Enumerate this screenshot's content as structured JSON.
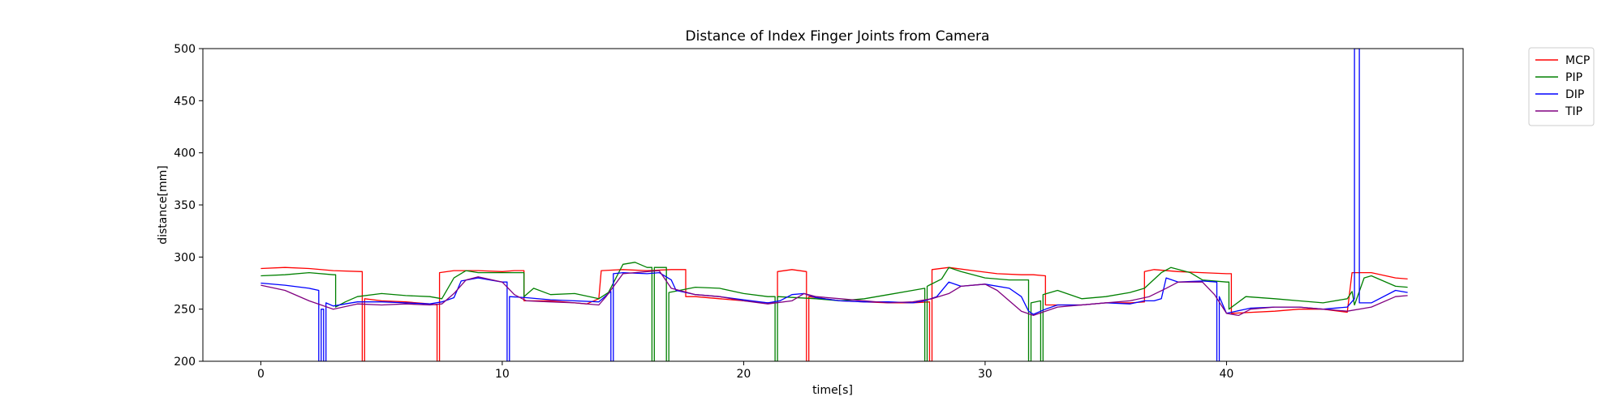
{
  "chart_data": {
    "type": "line",
    "title": "Distance of Index Finger Joints from Camera",
    "xlabel": "time[s]",
    "ylabel": "distance[mm]",
    "xlim": [
      -2.4,
      49.8
    ],
    "ylim": [
      200,
      500
    ],
    "xticks": [
      0,
      10,
      20,
      30,
      40
    ],
    "yticks": [
      200,
      250,
      300,
      350,
      400,
      450,
      500
    ],
    "grid": false,
    "legend": "outside-top-right",
    "series": [
      {
        "name": "MCP",
        "color": "#ff0000",
        "points": [
          [
            0,
            289
          ],
          [
            1,
            290
          ],
          [
            2,
            289
          ],
          [
            3,
            287
          ],
          [
            4.2,
            286
          ],
          [
            4.2,
            200
          ],
          [
            4.3,
            200
          ],
          [
            4.3,
            260
          ],
          [
            5,
            258
          ],
          [
            6,
            257
          ],
          [
            7,
            255
          ],
          [
            7.3,
            254
          ],
          [
            7.3,
            200
          ],
          [
            7.4,
            200
          ],
          [
            7.4,
            285
          ],
          [
            8,
            287
          ],
          [
            9,
            287
          ],
          [
            10,
            286
          ],
          [
            10.5,
            287
          ],
          [
            10.9,
            287
          ],
          [
            10.9,
            258
          ],
          [
            12,
            258
          ],
          [
            13,
            256
          ],
          [
            13.5,
            255
          ],
          [
            14,
            260
          ],
          [
            14.1,
            287
          ],
          [
            15,
            288
          ],
          [
            16,
            287
          ],
          [
            17,
            288
          ],
          [
            17.6,
            288
          ],
          [
            17.6,
            262
          ],
          [
            18,
            262
          ],
          [
            19,
            260
          ],
          [
            20,
            258
          ],
          [
            21,
            256
          ],
          [
            21.4,
            256
          ],
          [
            21.4,
            286
          ],
          [
            22,
            288
          ],
          [
            22.6,
            286
          ],
          [
            22.6,
            200
          ],
          [
            22.7,
            200
          ],
          [
            22.7,
            262
          ],
          [
            24,
            258
          ],
          [
            25,
            257
          ],
          [
            26,
            256
          ],
          [
            27,
            256
          ],
          [
            27.7,
            257
          ],
          [
            27.7,
            200
          ],
          [
            27.8,
            200
          ],
          [
            27.8,
            288
          ],
          [
            28.5,
            290
          ],
          [
            29.5,
            287
          ],
          [
            30.5,
            284
          ],
          [
            31.5,
            283
          ],
          [
            32,
            283
          ],
          [
            32.5,
            282
          ],
          [
            32.5,
            254
          ],
          [
            34,
            254
          ],
          [
            35,
            256
          ],
          [
            36,
            256
          ],
          [
            36.6,
            257
          ],
          [
            36.6,
            286
          ],
          [
            37,
            288
          ],
          [
            38,
            286
          ],
          [
            39,
            285
          ],
          [
            40,
            284
          ],
          [
            40.2,
            284
          ],
          [
            40.2,
            246
          ],
          [
            42,
            248
          ],
          [
            43,
            250
          ],
          [
            44,
            250
          ],
          [
            45,
            247
          ],
          [
            45.2,
            285
          ],
          [
            46,
            285
          ],
          [
            47,
            280
          ],
          [
            47.5,
            279
          ]
        ]
      },
      {
        "name": "PIP",
        "color": "#008000",
        "points": [
          [
            0,
            282
          ],
          [
            1,
            283
          ],
          [
            2,
            285
          ],
          [
            3,
            283
          ],
          [
            3.1,
            283
          ],
          [
            3.1,
            252
          ],
          [
            3.5,
            257
          ],
          [
            4,
            262
          ],
          [
            5,
            265
          ],
          [
            6,
            263
          ],
          [
            7,
            262
          ],
          [
            7.5,
            260
          ],
          [
            8,
            280
          ],
          [
            8.5,
            287
          ],
          [
            9,
            285
          ],
          [
            10,
            285
          ],
          [
            10.6,
            285
          ],
          [
            10.9,
            285
          ],
          [
            10.9,
            262
          ],
          [
            11.3,
            270
          ],
          [
            12,
            264
          ],
          [
            13,
            265
          ],
          [
            14,
            260
          ],
          [
            14.4,
            266
          ],
          [
            15,
            293
          ],
          [
            15.5,
            295
          ],
          [
            16,
            290
          ],
          [
            16.2,
            290
          ],
          [
            16.2,
            200
          ],
          [
            16.3,
            200
          ],
          [
            16.3,
            290
          ],
          [
            16.8,
            290
          ],
          [
            16.8,
            200
          ],
          [
            16.9,
            200
          ],
          [
            16.9,
            266
          ],
          [
            18,
            271
          ],
          [
            19,
            270
          ],
          [
            20,
            265
          ],
          [
            21,
            262
          ],
          [
            21.3,
            262
          ],
          [
            21.3,
            200
          ],
          [
            21.4,
            200
          ],
          [
            21.4,
            262
          ],
          [
            23,
            260
          ],
          [
            24,
            258
          ],
          [
            25,
            260
          ],
          [
            26,
            264
          ],
          [
            27,
            268
          ],
          [
            27.5,
            270
          ],
          [
            27.5,
            200
          ],
          [
            27.6,
            200
          ],
          [
            27.6,
            272
          ],
          [
            28.2,
            279
          ],
          [
            28.5,
            290
          ],
          [
            29,
            286
          ],
          [
            30,
            280
          ],
          [
            31,
            278
          ],
          [
            31.8,
            278
          ],
          [
            31.8,
            200
          ],
          [
            31.9,
            200
          ],
          [
            31.9,
            256
          ],
          [
            32.3,
            258
          ],
          [
            32.3,
            200
          ],
          [
            32.4,
            200
          ],
          [
            32.4,
            264
          ],
          [
            33,
            268
          ],
          [
            34,
            260
          ],
          [
            35,
            262
          ],
          [
            36,
            266
          ],
          [
            36.6,
            270
          ],
          [
            37.3,
            285
          ],
          [
            37.7,
            290
          ],
          [
            38.5,
            285
          ],
          [
            39,
            278
          ],
          [
            40,
            276
          ],
          [
            40.1,
            276
          ],
          [
            40.1,
            250
          ],
          [
            40.8,
            262
          ],
          [
            42,
            260
          ],
          [
            43,
            258
          ],
          [
            44,
            256
          ],
          [
            45,
            260
          ],
          [
            45.2,
            267
          ],
          [
            45.3,
            254
          ],
          [
            45.7,
            280
          ],
          [
            46,
            282
          ],
          [
            47,
            272
          ],
          [
            47.5,
            271
          ]
        ]
      },
      {
        "name": "DIP",
        "color": "#0000ff",
        "points": [
          [
            0,
            275
          ],
          [
            1,
            273
          ],
          [
            2,
            270
          ],
          [
            2.4,
            268
          ],
          [
            2.4,
            200
          ],
          [
            2.5,
            200
          ],
          [
            2.5,
            250
          ],
          [
            2.6,
            250
          ],
          [
            2.6,
            200
          ],
          [
            2.7,
            200
          ],
          [
            2.7,
            256
          ],
          [
            3,
            253
          ],
          [
            3.5,
            255
          ],
          [
            4,
            257
          ],
          [
            5,
            257
          ],
          [
            6,
            256
          ],
          [
            7,
            255
          ],
          [
            7.5,
            257
          ],
          [
            8,
            261
          ],
          [
            8.3,
            277
          ],
          [
            9,
            280
          ],
          [
            10,
            276
          ],
          [
            10.2,
            276
          ],
          [
            10.2,
            200
          ],
          [
            10.3,
            200
          ],
          [
            10.3,
            262
          ],
          [
            11,
            261
          ],
          [
            12,
            259
          ],
          [
            13,
            258
          ],
          [
            14,
            257
          ],
          [
            14.5,
            267
          ],
          [
            14.5,
            200
          ],
          [
            14.6,
            200
          ],
          [
            14.6,
            284
          ],
          [
            15,
            285
          ],
          [
            16,
            284
          ],
          [
            16.5,
            285
          ],
          [
            17,
            278
          ],
          [
            17.2,
            268
          ],
          [
            18,
            264
          ],
          [
            19,
            262
          ],
          [
            20,
            259
          ],
          [
            21,
            256
          ],
          [
            21.5,
            258
          ],
          [
            22,
            264
          ],
          [
            22.5,
            265
          ],
          [
            23,
            261
          ],
          [
            24,
            258
          ],
          [
            25,
            257
          ],
          [
            26,
            257
          ],
          [
            27,
            256
          ],
          [
            27.5,
            258
          ],
          [
            28,
            262
          ],
          [
            28.5,
            276
          ],
          [
            29,
            272
          ],
          [
            30,
            274
          ],
          [
            31,
            270
          ],
          [
            31.5,
            262
          ],
          [
            31.8,
            248
          ],
          [
            32,
            245
          ],
          [
            32.5,
            250
          ],
          [
            33,
            254
          ],
          [
            34,
            254
          ],
          [
            35,
            256
          ],
          [
            36,
            255
          ],
          [
            36.6,
            258
          ],
          [
            37,
            258
          ],
          [
            37.3,
            260
          ],
          [
            37.5,
            280
          ],
          [
            38,
            276
          ],
          [
            39,
            277
          ],
          [
            39.6,
            276
          ],
          [
            39.6,
            200
          ],
          [
            39.7,
            200
          ],
          [
            39.7,
            262
          ],
          [
            40,
            246
          ],
          [
            41,
            251
          ],
          [
            42,
            252
          ],
          [
            43,
            252
          ],
          [
            44,
            250
          ],
          [
            45,
            252
          ],
          [
            45.3,
            260
          ],
          [
            45.3,
            500
          ],
          [
            45.5,
            500
          ],
          [
            45.5,
            256
          ],
          [
            46,
            256
          ],
          [
            47,
            268
          ],
          [
            47.5,
            266
          ]
        ]
      },
      {
        "name": "TIP",
        "color": "#800080",
        "points": [
          [
            0,
            273
          ],
          [
            1,
            268
          ],
          [
            2,
            258
          ],
          [
            3,
            250
          ],
          [
            4,
            255
          ],
          [
            5,
            254
          ],
          [
            6,
            255
          ],
          [
            7,
            254
          ],
          [
            7.5,
            255
          ],
          [
            8,
            265
          ],
          [
            8.5,
            278
          ],
          [
            9,
            281
          ],
          [
            10,
            276
          ],
          [
            10.5,
            264
          ],
          [
            11,
            258
          ],
          [
            12,
            257
          ],
          [
            13,
            256
          ],
          [
            14,
            254
          ],
          [
            14.3,
            262
          ],
          [
            15,
            284
          ],
          [
            16,
            286
          ],
          [
            16.5,
            287
          ],
          [
            17,
            270
          ],
          [
            18,
            264
          ],
          [
            19,
            262
          ],
          [
            20,
            258
          ],
          [
            21,
            255
          ],
          [
            22,
            258
          ],
          [
            22.5,
            265
          ],
          [
            23,
            262
          ],
          [
            24,
            260
          ],
          [
            25,
            258
          ],
          [
            26,
            256
          ],
          [
            27,
            257
          ],
          [
            27.8,
            260
          ],
          [
            28.5,
            265
          ],
          [
            29,
            272
          ],
          [
            30,
            274
          ],
          [
            30.5,
            268
          ],
          [
            31,
            258
          ],
          [
            31.5,
            248
          ],
          [
            32,
            244
          ],
          [
            33,
            252
          ],
          [
            34,
            254
          ],
          [
            35,
            256
          ],
          [
            36,
            258
          ],
          [
            36.8,
            262
          ],
          [
            37.5,
            270
          ],
          [
            38,
            276
          ],
          [
            39,
            276
          ],
          [
            39.5,
            264
          ],
          [
            40,
            246
          ],
          [
            40.5,
            244
          ],
          [
            41,
            250
          ],
          [
            42,
            252
          ],
          [
            43,
            252
          ],
          [
            44,
            250
          ],
          [
            45,
            248
          ],
          [
            46,
            252
          ],
          [
            47,
            262
          ],
          [
            47.5,
            263
          ]
        ]
      }
    ]
  }
}
